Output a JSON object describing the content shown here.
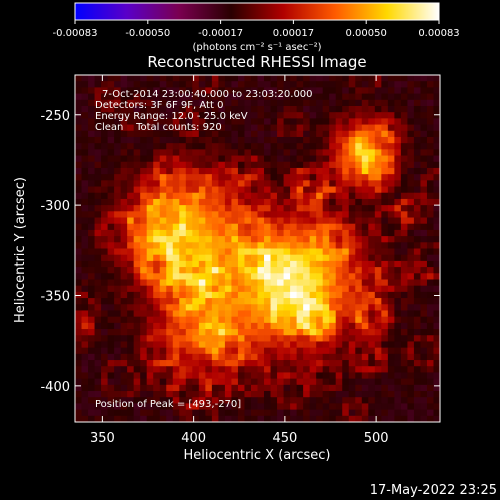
{
  "chart_data": {
    "type": "heatmap",
    "title": "Reconstructed RHESSI Image",
    "xlabel": "Heliocentric X (arcsec)",
    "ylabel": "Heliocentric Y (arcsec)",
    "xlim": [
      335,
      535
    ],
    "ylim": [
      -420,
      -228
    ],
    "x_ticks": [
      350,
      400,
      450,
      500
    ],
    "y_ticks": [
      -250,
      -300,
      -350,
      -400
    ],
    "colorbar": {
      "min": -0.00083,
      "max": 0.00083,
      "ticks": [
        "-0.00083",
        "-0.00050",
        "-0.00017",
        "0.00017",
        "0.00050",
        "0.00083"
      ],
      "unit_label": "(photons cm⁻² s⁻¹ asec⁻²)",
      "colormap": [
        "#0000ff",
        "#5a00c8",
        "#7a0050",
        "#2a0000",
        "#b00000",
        "#ff5a00",
        "#ffd800",
        "#ffffff"
      ]
    },
    "annotations": [
      "7-Oct-2014 23:00:40.000 to 23:03:20.000",
      "Detectors: 3F 6F 9F, Att 0",
      "Energy Range: 12.0 - 25.0 keV",
      "Clean    Total counts: 920"
    ],
    "peak_label": "Position of Peak = [493,-270]",
    "peak": {
      "x": 493,
      "y": -270
    },
    "sources": [
      {
        "x": 455,
        "y": -343,
        "amp": 1.0,
        "sigma": 24
      },
      {
        "x": 395,
        "y": -315,
        "amp": 0.8,
        "sigma": 22
      },
      {
        "x": 493,
        "y": -270,
        "amp": 0.75,
        "sigma": 12
      },
      {
        "x": 405,
        "y": -368,
        "amp": 0.55,
        "sigma": 18
      }
    ],
    "grid": false
  },
  "footer": {
    "timestamp": "17-May-2022 23:25"
  }
}
